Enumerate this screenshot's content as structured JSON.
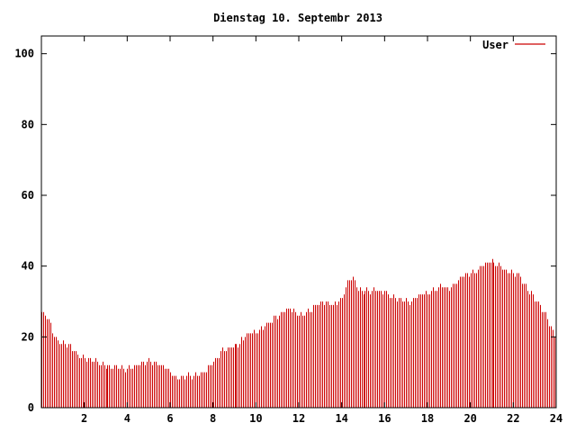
{
  "chart_data": {
    "type": "bar",
    "title": "Dienstag 10. Septembr 2013",
    "xlabel": "",
    "ylabel": "",
    "xlim": [
      0,
      24
    ],
    "ylim": [
      0,
      105
    ],
    "x_ticks": [
      2,
      4,
      6,
      8,
      10,
      12,
      14,
      16,
      18,
      20,
      22,
      24
    ],
    "y_ticks": [
      0,
      20,
      40,
      60,
      80,
      100
    ],
    "grid": false,
    "legend_position": "top-right",
    "series": [
      {
        "name": "User",
        "color": "#cc0000",
        "keyframes_hour_value": [
          [
            0.0,
            27
          ],
          [
            0.3,
            25
          ],
          [
            0.6,
            20
          ],
          [
            1.0,
            18
          ],
          [
            1.4,
            17
          ],
          [
            1.6,
            15
          ],
          [
            2.0,
            14
          ],
          [
            2.6,
            13
          ],
          [
            3.0,
            12
          ],
          [
            3.6,
            11
          ],
          [
            4.0,
            11
          ],
          [
            4.5,
            12
          ],
          [
            5.0,
            13
          ],
          [
            5.5,
            12
          ],
          [
            5.8,
            12
          ],
          [
            6.0,
            10
          ],
          [
            6.4,
            8
          ],
          [
            6.8,
            9
          ],
          [
            7.2,
            9
          ],
          [
            7.6,
            10
          ],
          [
            8.0,
            13
          ],
          [
            8.4,
            16
          ],
          [
            8.8,
            17
          ],
          [
            9.2,
            18
          ],
          [
            9.6,
            21
          ],
          [
            10.0,
            21
          ],
          [
            10.4,
            23
          ],
          [
            10.8,
            25
          ],
          [
            11.2,
            27
          ],
          [
            11.6,
            28
          ],
          [
            12.0,
            26
          ],
          [
            12.4,
            27
          ],
          [
            12.8,
            29
          ],
          [
            13.2,
            30
          ],
          [
            13.6,
            29
          ],
          [
            14.0,
            31
          ],
          [
            14.3,
            36
          ],
          [
            14.5,
            37
          ],
          [
            14.8,
            33
          ],
          [
            15.2,
            33
          ],
          [
            15.6,
            33
          ],
          [
            16.0,
            33
          ],
          [
            16.4,
            31
          ],
          [
            16.8,
            31
          ],
          [
            17.2,
            30
          ],
          [
            17.6,
            32
          ],
          [
            18.0,
            32
          ],
          [
            18.5,
            34
          ],
          [
            19.0,
            34
          ],
          [
            19.4,
            36
          ],
          [
            19.8,
            38
          ],
          [
            20.2,
            38
          ],
          [
            20.6,
            41
          ],
          [
            21.0,
            41
          ],
          [
            21.4,
            40
          ],
          [
            21.8,
            38
          ],
          [
            22.2,
            38
          ],
          [
            22.6,
            34
          ],
          [
            23.0,
            31
          ],
          [
            23.3,
            28
          ],
          [
            23.6,
            25
          ],
          [
            23.8,
            22
          ],
          [
            24.0,
            20
          ]
        ]
      }
    ]
  }
}
